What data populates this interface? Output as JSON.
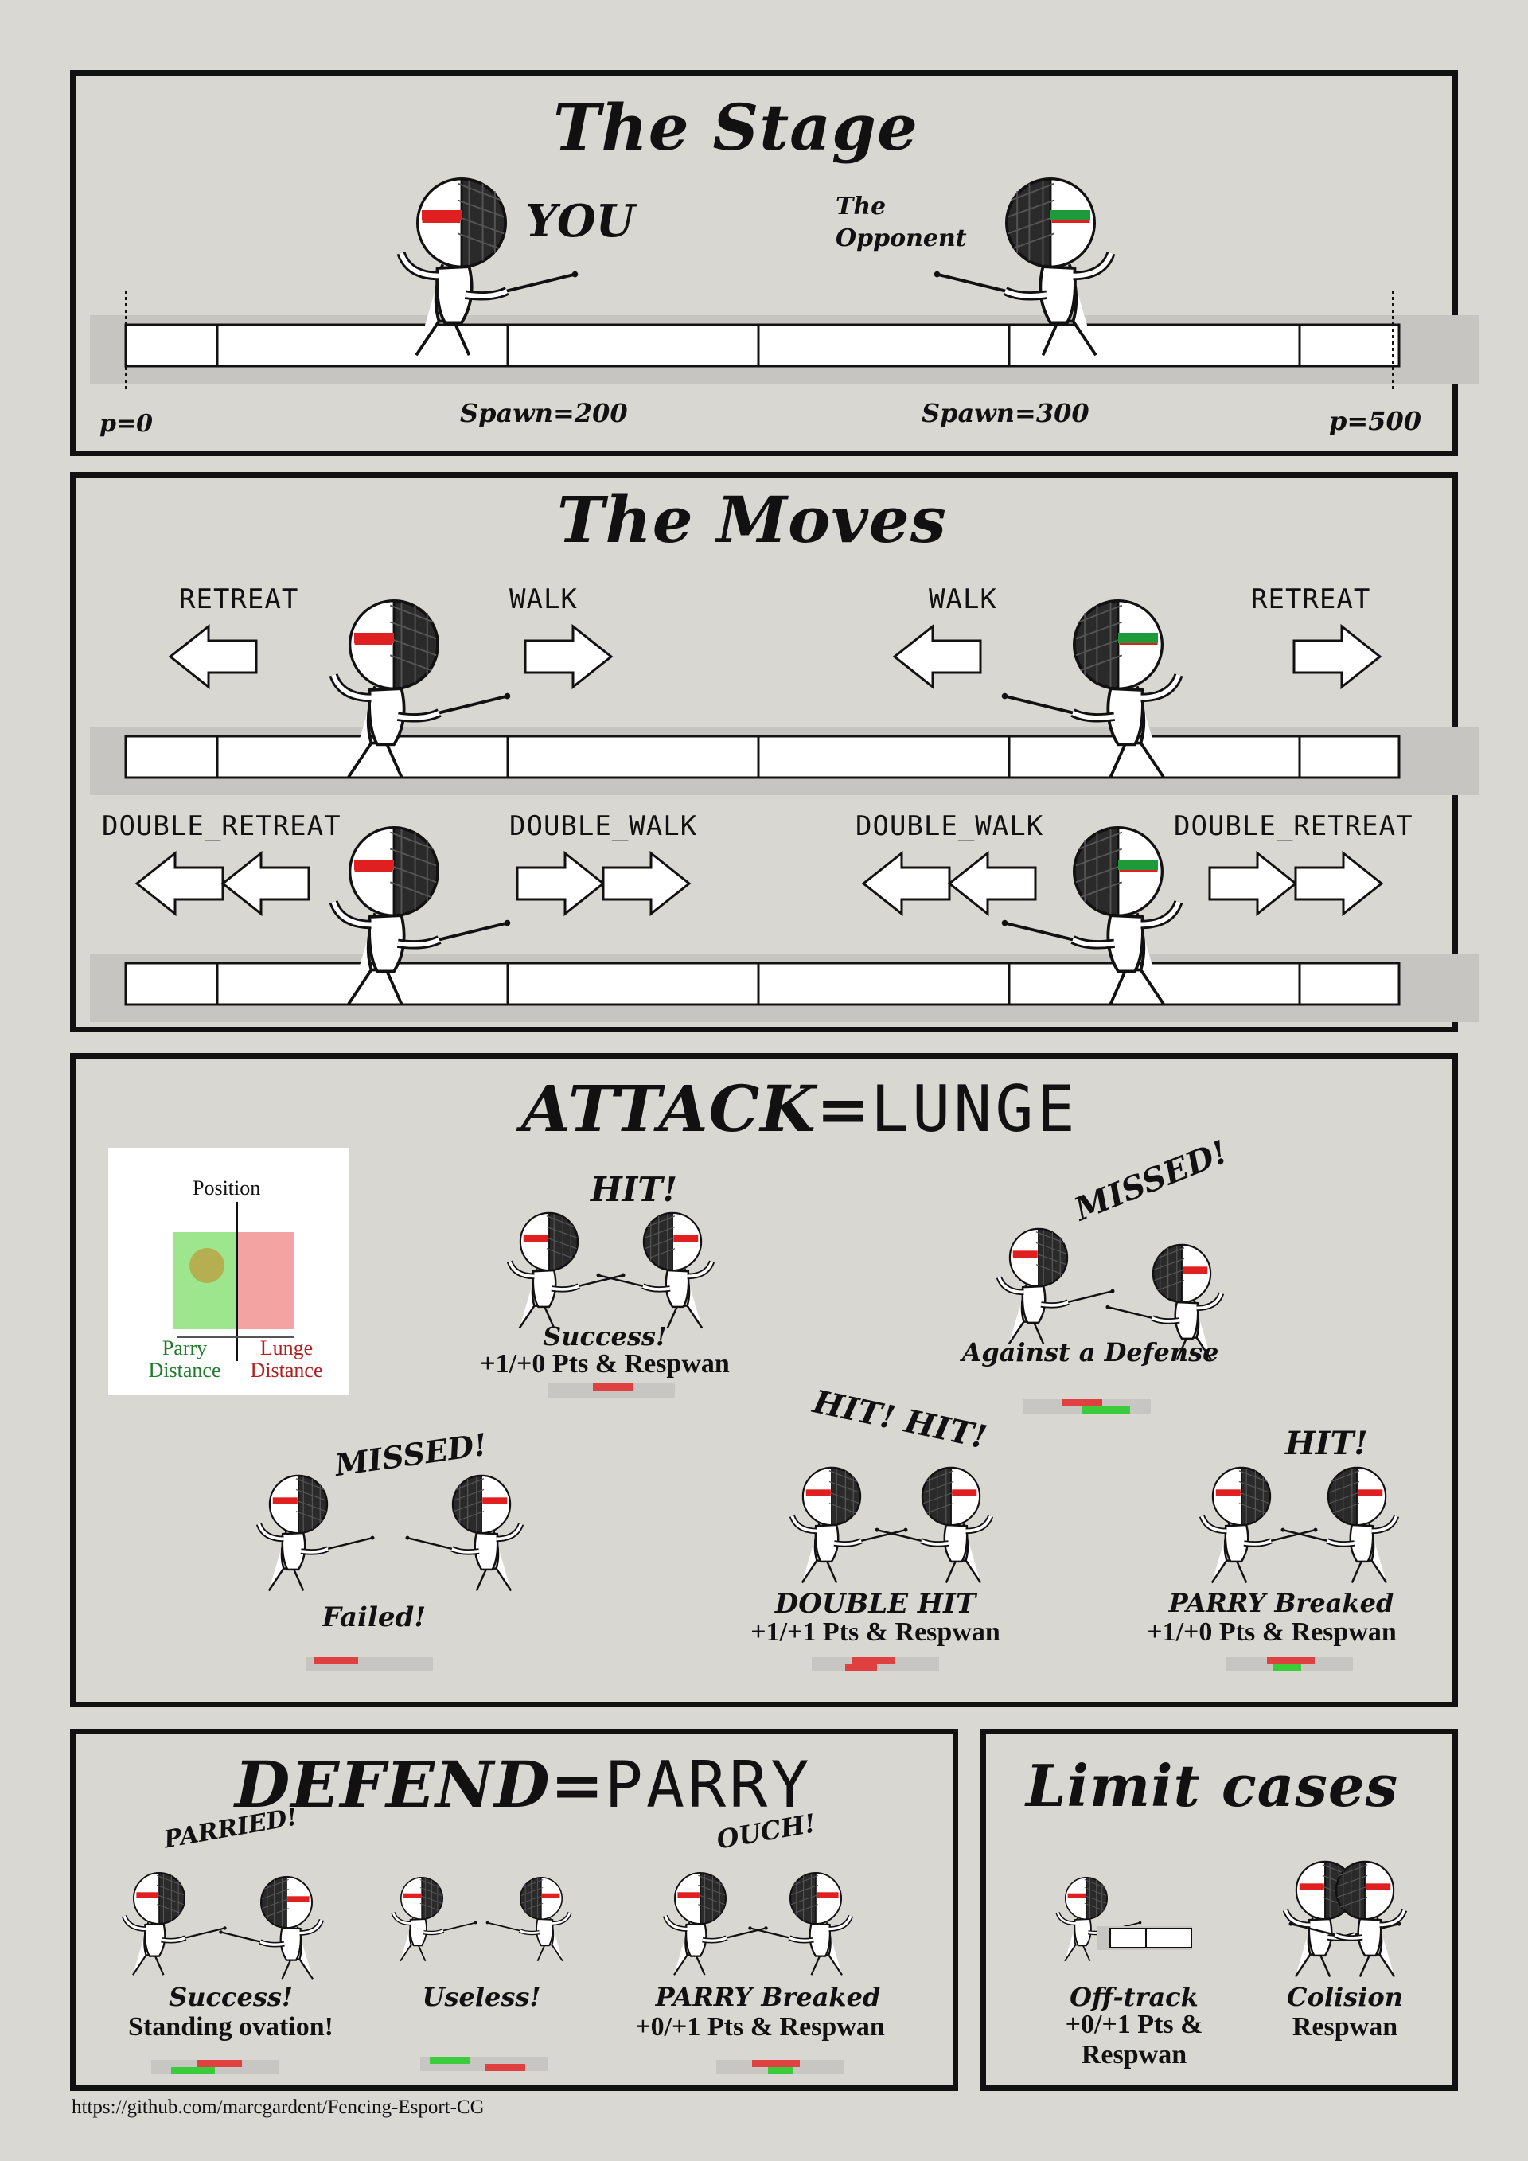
{
  "stage": {
    "title": "The Stage",
    "you_label": "YOU",
    "opponent_label": "The Opponent",
    "markers": [
      "p=0",
      "Spawn=200",
      "Spawn=300",
      "p=500"
    ]
  },
  "moves": {
    "title": "The Moves",
    "row1": [
      "RETREAT",
      "WALK",
      "WALK",
      "RETREAT"
    ],
    "row2": [
      "DOUBLE_RETREAT",
      "DOUBLE_WALK",
      "DOUBLE_WALK",
      "DOUBLE_RETREAT"
    ]
  },
  "attack": {
    "title_prefix": "ATTACK=",
    "title_word": "LUNGE",
    "diagram": {
      "position": "Position",
      "parry": "Parry Distance",
      "lunge": "Lunge Distance"
    },
    "scenes": [
      {
        "exclaim": "HIT!",
        "result": "Success!",
        "points": "+1/+0 Pts & Respwan"
      },
      {
        "exclaim": "MISSED!",
        "result": "Against a Defense",
        "points": ""
      },
      {
        "exclaim": "MISSED!",
        "result": "Failed!",
        "points": ""
      },
      {
        "exclaim": "HIT! HIT!",
        "result": "DOUBLE HIT",
        "points": "+1/+1 Pts & Respwan"
      },
      {
        "exclaim": "HIT!",
        "result": "PARRY Breaked",
        "points": "+1/+0 Pts & Respwan"
      }
    ]
  },
  "defend": {
    "title_prefix": "DEFEND=",
    "title_word": "PARRY",
    "scenes": [
      {
        "exclaim": "PARRIED!",
        "result": "Success!",
        "points": "Standing ovation!"
      },
      {
        "exclaim": "",
        "result": "Useless!",
        "points": ""
      },
      {
        "exclaim": "OUCH!",
        "result": "PARRY Breaked",
        "points": "+0/+1 Pts & Respwan"
      }
    ]
  },
  "limits": {
    "title": "Limit cases",
    "cases": [
      {
        "result": "Off-track",
        "points": "+0/+1 Pts & Respwan"
      },
      {
        "result": "Colision",
        "points": "Respwan"
      }
    ]
  },
  "footer": {
    "link": "https://github.com/marcgardent/Fencing-Esport-CG"
  },
  "colors": {
    "you": "#e02020",
    "opponent": "#1f9a3a",
    "lunge_zone": "#f4a3a3",
    "parry_zone": "#9ee68e"
  }
}
